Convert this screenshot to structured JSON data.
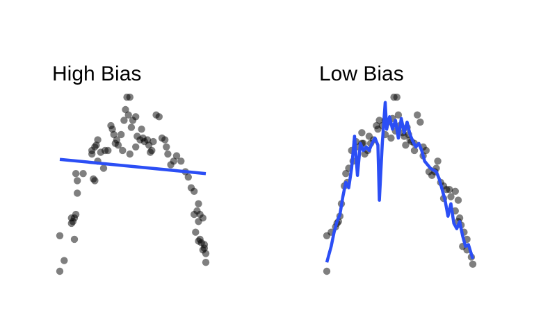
{
  "colors": {
    "point": "#000000",
    "line": "#2b4ef5"
  },
  "chart_data": [
    {
      "type": "scatter",
      "title": "High Bias",
      "xlabel": "",
      "ylabel": "",
      "xlim": [
        0,
        1
      ],
      "ylim": [
        0,
        1
      ],
      "grid": false,
      "points": [
        [
          0.0,
          0.0
        ],
        [
          0.03,
          0.06
        ],
        [
          0.0,
          0.2
        ],
        [
          0.1,
          0.18
        ],
        [
          0.08,
          0.27
        ],
        [
          0.09,
          0.28
        ],
        [
          0.1,
          0.3
        ],
        [
          0.11,
          0.32
        ],
        [
          0.08,
          0.3
        ],
        [
          0.12,
          0.44
        ],
        [
          0.12,
          0.51
        ],
        [
          0.11,
          0.55
        ],
        [
          0.16,
          0.55
        ],
        [
          0.24,
          0.51
        ],
        [
          0.23,
          0.52
        ],
        [
          0.22,
          0.66
        ],
        [
          0.22,
          0.68
        ],
        [
          0.24,
          0.7
        ],
        [
          0.25,
          0.71
        ],
        [
          0.26,
          0.74
        ],
        [
          0.28,
          0.67
        ],
        [
          0.31,
          0.68
        ],
        [
          0.33,
          0.68
        ],
        [
          0.35,
          0.82
        ],
        [
          0.36,
          0.8
        ],
        [
          0.37,
          0.77
        ],
        [
          0.39,
          0.74
        ],
        [
          0.4,
          0.71
        ],
        [
          0.42,
          0.77
        ],
        [
          0.44,
          0.85
        ],
        [
          0.45,
          0.91
        ],
        [
          0.46,
          0.98
        ],
        [
          0.48,
          0.98
        ],
        [
          0.47,
          0.88
        ],
        [
          0.49,
          0.81
        ],
        [
          0.5,
          0.85
        ],
        [
          0.52,
          0.87
        ],
        [
          0.53,
          0.76
        ],
        [
          0.55,
          0.74
        ],
        [
          0.56,
          0.8
        ],
        [
          0.57,
          0.75
        ],
        [
          0.58,
          0.73
        ],
        [
          0.6,
          0.74
        ],
        [
          0.61,
          0.71
        ],
        [
          0.62,
          0.67
        ],
        [
          0.63,
          0.68
        ],
        [
          0.64,
          0.73
        ],
        [
          0.66,
          0.88
        ],
        [
          0.68,
          0.87
        ],
        [
          0.7,
          0.75
        ],
        [
          0.72,
          0.74
        ],
        [
          0.73,
          0.7
        ],
        [
          0.74,
          0.66
        ],
        [
          0.76,
          0.6
        ],
        [
          0.78,
          0.62
        ],
        [
          0.8,
          0.65
        ],
        [
          0.83,
          0.62
        ],
        [
          0.86,
          0.56
        ],
        [
          0.88,
          0.53
        ],
        [
          0.9,
          0.47
        ],
        [
          0.92,
          0.45
        ],
        [
          0.95,
          0.38
        ],
        [
          0.92,
          0.32
        ],
        [
          0.96,
          0.32
        ],
        [
          0.98,
          0.3
        ],
        [
          0.95,
          0.28
        ],
        [
          0.93,
          0.22
        ],
        [
          0.95,
          0.17
        ],
        [
          0.96,
          0.18
        ],
        [
          0.99,
          0.13
        ],
        [
          0.98,
          0.12
        ],
        [
          1.0,
          0.1
        ],
        [
          0.97,
          0.16
        ],
        [
          0.99,
          0.15
        ],
        [
          1.0,
          0.05
        ],
        [
          0.94,
          0.34
        ],
        [
          0.52,
          0.7
        ],
        [
          0.48,
          0.66
        ],
        [
          0.43,
          0.68
        ],
        [
          0.38,
          0.72
        ],
        [
          0.3,
          0.58
        ],
        [
          0.26,
          0.62
        ]
      ],
      "fit_line": [
        [
          0.0,
          0.63
        ],
        [
          1.0,
          0.55
        ]
      ]
    },
    {
      "type": "scatter",
      "title": "Low Bias",
      "xlabel": "",
      "ylabel": "",
      "xlim": [
        0,
        1
      ],
      "ylim": [
        0,
        1
      ],
      "grid": false,
      "points": [
        [
          0.0,
          0.0
        ],
        [
          0.0,
          0.2
        ],
        [
          0.06,
          0.25
        ],
        [
          0.07,
          0.27
        ],
        [
          0.08,
          0.28
        ],
        [
          0.09,
          0.31
        ],
        [
          0.12,
          0.48
        ],
        [
          0.13,
          0.55
        ],
        [
          0.15,
          0.58
        ],
        [
          0.14,
          0.5
        ],
        [
          0.17,
          0.68
        ],
        [
          0.22,
          0.7
        ],
        [
          0.24,
          0.72
        ],
        [
          0.25,
          0.72
        ],
        [
          0.26,
          0.66
        ],
        [
          0.28,
          0.68
        ],
        [
          0.3,
          0.72
        ],
        [
          0.32,
          0.74
        ],
        [
          0.34,
          0.82
        ],
        [
          0.35,
          0.8
        ],
        [
          0.36,
          0.85
        ],
        [
          0.38,
          0.82
        ],
        [
          0.4,
          0.85
        ],
        [
          0.42,
          0.84
        ],
        [
          0.44,
          0.75
        ],
        [
          0.45,
          0.86
        ],
        [
          0.46,
          0.98
        ],
        [
          0.48,
          0.98
        ],
        [
          0.49,
          0.88
        ],
        [
          0.5,
          0.82
        ],
        [
          0.52,
          0.78
        ],
        [
          0.53,
          0.76
        ],
        [
          0.55,
          0.81
        ],
        [
          0.56,
          0.77
        ],
        [
          0.57,
          0.74
        ],
        [
          0.58,
          0.73
        ],
        [
          0.6,
          0.72
        ],
        [
          0.62,
          0.88
        ],
        [
          0.64,
          0.84
        ],
        [
          0.66,
          0.7
        ],
        [
          0.68,
          0.68
        ],
        [
          0.72,
          0.54
        ],
        [
          0.74,
          0.56
        ],
        [
          0.75,
          0.58
        ],
        [
          0.78,
          0.5
        ],
        [
          0.8,
          0.48
        ],
        [
          0.82,
          0.46
        ],
        [
          0.85,
          0.42
        ],
        [
          0.88,
          0.45
        ],
        [
          0.9,
          0.4
        ],
        [
          0.88,
          0.34
        ],
        [
          0.9,
          0.28
        ],
        [
          0.92,
          0.26
        ],
        [
          0.94,
          0.22
        ],
        [
          0.96,
          0.18
        ],
        [
          0.93,
          0.14
        ],
        [
          0.96,
          0.12
        ],
        [
          0.99,
          0.08
        ],
        [
          1.0,
          0.04
        ],
        [
          0.91,
          0.3
        ],
        [
          0.8,
          0.41
        ],
        [
          0.84,
          0.46
        ],
        [
          0.7,
          0.56
        ],
        [
          0.76,
          0.62
        ],
        [
          0.66,
          0.65
        ],
        [
          0.6,
          0.68
        ],
        [
          0.54,
          0.71
        ],
        [
          0.47,
          0.79
        ],
        [
          0.4,
          0.77
        ],
        [
          0.29,
          0.76
        ],
        [
          0.2,
          0.73
        ],
        [
          0.1,
          0.38
        ],
        [
          0.03,
          0.22
        ],
        [
          0.18,
          0.62
        ],
        [
          0.24,
          0.78
        ]
      ],
      "fit_line": [
        [
          0.0,
          0.05
        ],
        [
          0.03,
          0.14
        ],
        [
          0.05,
          0.22
        ],
        [
          0.07,
          0.28
        ],
        [
          0.09,
          0.32
        ],
        [
          0.11,
          0.42
        ],
        [
          0.13,
          0.5
        ],
        [
          0.15,
          0.47
        ],
        [
          0.17,
          0.58
        ],
        [
          0.19,
          0.76
        ],
        [
          0.21,
          0.54
        ],
        [
          0.23,
          0.72
        ],
        [
          0.25,
          0.68
        ],
        [
          0.27,
          0.7
        ],
        [
          0.29,
          0.68
        ],
        [
          0.31,
          0.72
        ],
        [
          0.33,
          0.75
        ],
        [
          0.35,
          0.71
        ],
        [
          0.36,
          0.4
        ],
        [
          0.38,
          0.72
        ],
        [
          0.4,
          0.95
        ],
        [
          0.41,
          0.8
        ],
        [
          0.43,
          0.87
        ],
        [
          0.45,
          0.8
        ],
        [
          0.47,
          0.85
        ],
        [
          0.49,
          0.75
        ],
        [
          0.51,
          0.86
        ],
        [
          0.53,
          0.78
        ],
        [
          0.55,
          0.84
        ],
        [
          0.57,
          0.77
        ],
        [
          0.59,
          0.73
        ],
        [
          0.61,
          0.7
        ],
        [
          0.63,
          0.72
        ],
        [
          0.65,
          0.68
        ],
        [
          0.67,
          0.62
        ],
        [
          0.69,
          0.6
        ],
        [
          0.71,
          0.58
        ],
        [
          0.73,
          0.57
        ],
        [
          0.75,
          0.56
        ],
        [
          0.77,
          0.52
        ],
        [
          0.79,
          0.46
        ],
        [
          0.81,
          0.4
        ],
        [
          0.83,
          0.31
        ],
        [
          0.85,
          0.38
        ],
        [
          0.87,
          0.27
        ],
        [
          0.89,
          0.24
        ],
        [
          0.91,
          0.28
        ],
        [
          0.93,
          0.2
        ],
        [
          0.95,
          0.14
        ],
        [
          0.97,
          0.15
        ],
        [
          1.0,
          0.07
        ]
      ]
    }
  ]
}
